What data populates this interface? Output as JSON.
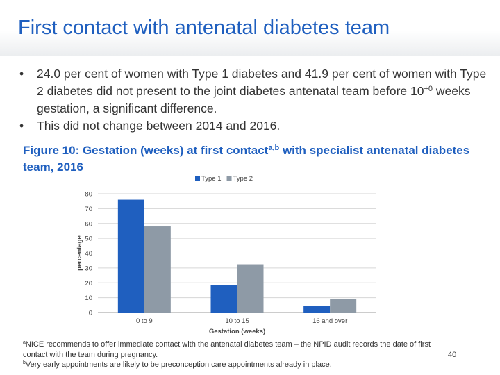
{
  "slide": {
    "title": "First contact with antenatal diabetes team",
    "bullets": [
      {
        "before_sup": "24.0 per cent of women with Type 1 diabetes and 41.9 per cent of women with Type 2 diabetes did not present to the joint diabetes antenatal team before 10",
        "sup": "+0",
        "after_sup": " weeks gestation, a significant difference."
      },
      {
        "text": "This did not change between 2014 and 2016."
      }
    ],
    "figure_caption": {
      "before_sup": "Figure 10: Gestation (weeks) at first contact",
      "sup": "a,b",
      "after_sup": " with specialist antenatal diabetes team, 2016"
    },
    "footnotes": [
      {
        "marker": "a",
        "text": "NICE recommends to offer immediate contact with the antenatal diabetes team – the NPID audit records the date of first contact with the team during pregnancy."
      },
      {
        "marker": "b",
        "text": "Very early appointments are likely to be preconception care appointments already in place."
      }
    ],
    "page_number": "40"
  },
  "chart_data": {
    "type": "bar",
    "title": "",
    "xlabel": "Gestation (weeks)",
    "ylabel": "percentage",
    "categories": [
      "0 to 9",
      "10 to 15",
      "16 and over"
    ],
    "series": [
      {
        "name": "Type 1",
        "color": "#1f5fbf",
        "values": [
          76,
          18.5,
          4.5
        ]
      },
      {
        "name": "Type 2",
        "color": "#8e9aa6",
        "values": [
          58,
          32.5,
          9
        ]
      }
    ],
    "ylim": [
      0,
      80
    ],
    "yticks": [
      0,
      10,
      20,
      30,
      40,
      50,
      60,
      70,
      80
    ],
    "grid": true,
    "legend": "top-center"
  }
}
